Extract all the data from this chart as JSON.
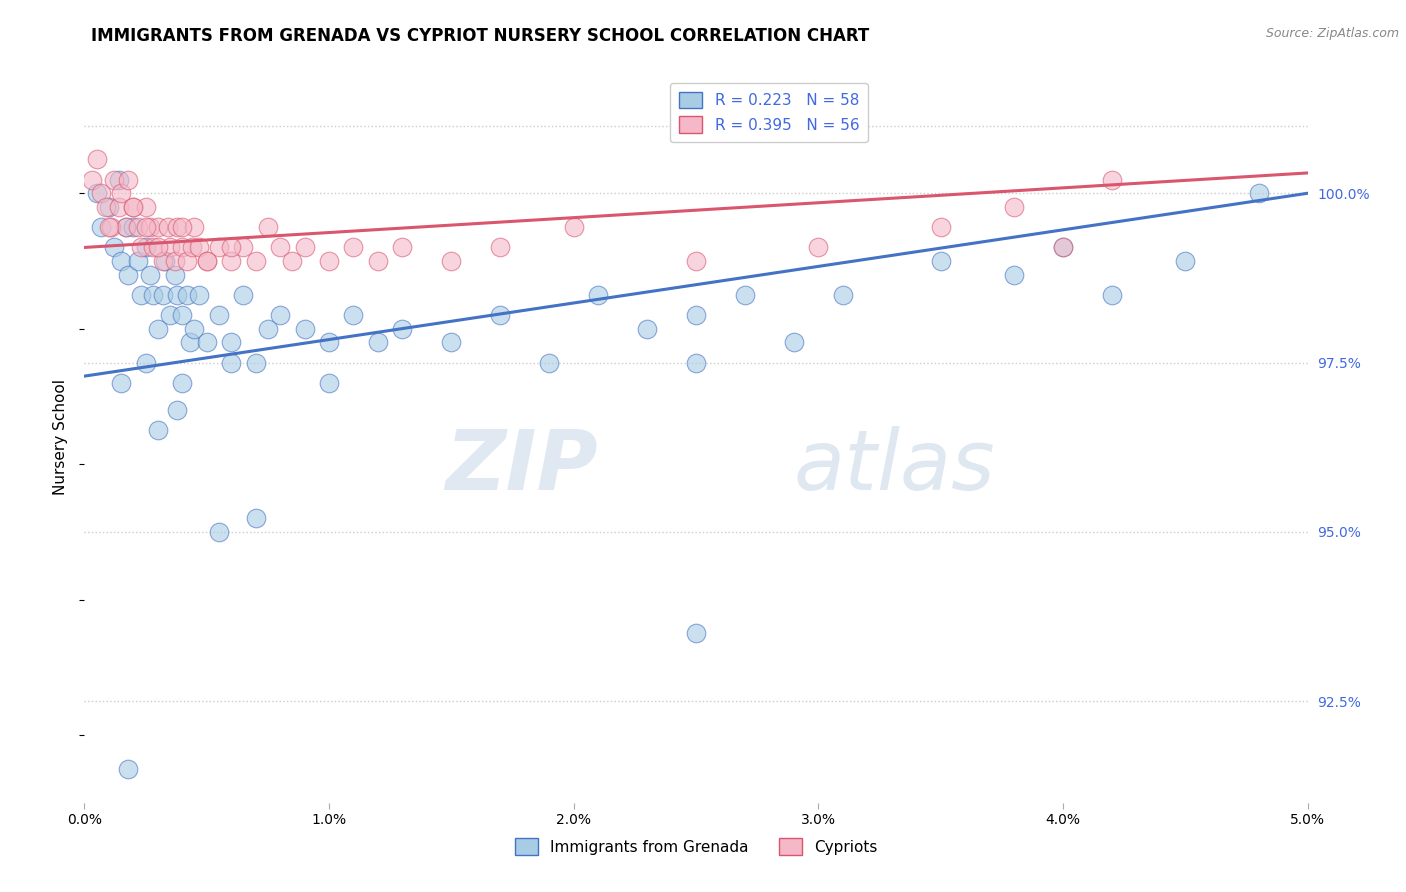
{
  "title": "IMMIGRANTS FROM GRENADA VS CYPRIOT NURSERY SCHOOL CORRELATION CHART",
  "source": "Source: ZipAtlas.com",
  "ylabel": "Nursery School",
  "xlim": [
    0.0,
    5.0
  ],
  "ylim": [
    91.0,
    101.8
  ],
  "xticks": [
    0.0,
    1.0,
    2.0,
    3.0,
    4.0,
    5.0
  ],
  "yticks_right": [
    92.5,
    95.0,
    97.5,
    100.0
  ],
  "legend_r1": "R = 0.223",
  "legend_n1": "N = 58",
  "legend_r2": "R = 0.395",
  "legend_n2": "N = 56",
  "legend_label1": "Immigrants from Grenada",
  "legend_label2": "Cypriots",
  "color_blue": "#a8cce4",
  "color_pink": "#f4b8c8",
  "color_trendline_blue": "#4472c4",
  "color_trendline_pink": "#d9566e",
  "color_rvalue": "#4169e1",
  "background_color": "#ffffff",
  "grid_color": "#cccccc",
  "watermark_zip": "ZIP",
  "watermark_atlas": "atlas",
  "blue_points_x": [
    0.05,
    0.07,
    0.1,
    0.12,
    0.14,
    0.15,
    0.17,
    0.18,
    0.2,
    0.22,
    0.23,
    0.25,
    0.27,
    0.28,
    0.3,
    0.32,
    0.33,
    0.35,
    0.37,
    0.38,
    0.4,
    0.42,
    0.43,
    0.45,
    0.47,
    0.5,
    0.55,
    0.6,
    0.65,
    0.7,
    0.75,
    0.8,
    0.9,
    1.0,
    1.1,
    1.2,
    1.3,
    1.5,
    1.7,
    1.9,
    2.1,
    2.3,
    2.5,
    2.7,
    2.9,
    3.1,
    3.5,
    3.8,
    4.0,
    4.2,
    4.5,
    4.8,
    0.15,
    0.25,
    0.4,
    0.6,
    1.0,
    2.5
  ],
  "blue_points_y": [
    100.0,
    99.5,
    99.8,
    99.2,
    100.2,
    99.0,
    99.5,
    98.8,
    99.5,
    99.0,
    98.5,
    99.2,
    98.8,
    98.5,
    98.0,
    98.5,
    99.0,
    98.2,
    98.8,
    98.5,
    98.2,
    98.5,
    97.8,
    98.0,
    98.5,
    97.8,
    98.2,
    97.8,
    98.5,
    97.5,
    98.0,
    98.2,
    98.0,
    97.8,
    98.2,
    97.8,
    98.0,
    97.8,
    98.2,
    97.5,
    98.5,
    98.0,
    98.2,
    98.5,
    97.8,
    98.5,
    99.0,
    98.8,
    99.2,
    98.5,
    99.0,
    100.0,
    97.2,
    97.5,
    97.2,
    97.5,
    97.2,
    97.5
  ],
  "blue_outliers_x": [
    0.3,
    0.55,
    0.7,
    2.5,
    0.18,
    0.38
  ],
  "blue_outliers_y": [
    96.5,
    95.0,
    95.2,
    93.5,
    91.5,
    96.8
  ],
  "pink_points_x": [
    0.03,
    0.05,
    0.07,
    0.09,
    0.11,
    0.12,
    0.14,
    0.15,
    0.17,
    0.18,
    0.2,
    0.22,
    0.23,
    0.25,
    0.27,
    0.28,
    0.3,
    0.32,
    0.34,
    0.35,
    0.37,
    0.38,
    0.4,
    0.42,
    0.44,
    0.45,
    0.47,
    0.5,
    0.55,
    0.6,
    0.65,
    0.7,
    0.75,
    0.8,
    0.85,
    0.9,
    1.0,
    1.1,
    1.2,
    1.3,
    1.5,
    1.7,
    2.0,
    2.5,
    3.0,
    3.5,
    4.0,
    0.1,
    0.2,
    0.3,
    0.4,
    0.5,
    0.6,
    4.2,
    3.8,
    0.25
  ],
  "pink_points_y": [
    100.2,
    100.5,
    100.0,
    99.8,
    99.5,
    100.2,
    99.8,
    100.0,
    99.5,
    100.2,
    99.8,
    99.5,
    99.2,
    99.8,
    99.5,
    99.2,
    99.5,
    99.0,
    99.5,
    99.2,
    99.0,
    99.5,
    99.2,
    99.0,
    99.2,
    99.5,
    99.2,
    99.0,
    99.2,
    99.0,
    99.2,
    99.0,
    99.5,
    99.2,
    99.0,
    99.2,
    99.0,
    99.2,
    99.0,
    99.2,
    99.0,
    99.2,
    99.5,
    99.0,
    99.2,
    99.5,
    99.2,
    99.5,
    99.8,
    99.2,
    99.5,
    99.0,
    99.2,
    100.2,
    99.8,
    99.5
  ]
}
